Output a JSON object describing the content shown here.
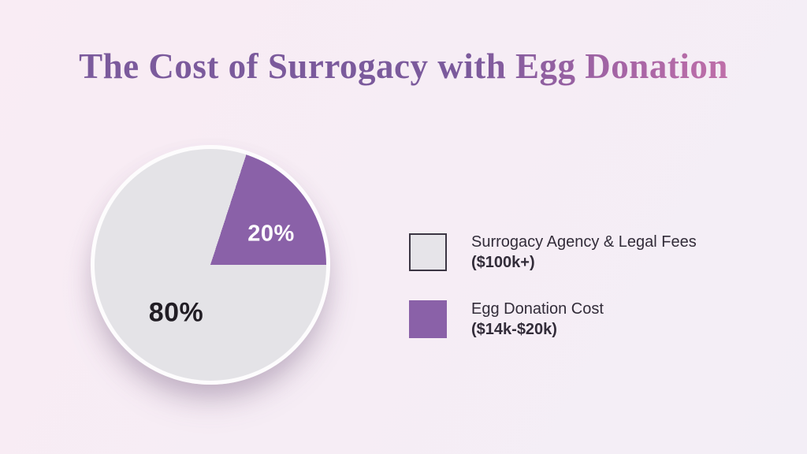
{
  "page": {
    "background_start": "#f9ecf4",
    "background_end": "#f3eef6"
  },
  "title": {
    "text": "The Cost of Surrogacy with Egg Donation",
    "color_start": "#7b5a9c",
    "color_mid": "#a765a5",
    "color_end": "#d277ac"
  },
  "chart_data": {
    "type": "pie",
    "title": "The Cost of Surrogacy with Egg Donation",
    "rotation_deg": 18,
    "legend_position": "right",
    "slices": [
      {
        "label": "Egg Donation Cost",
        "sublabel": "($14k-$20k)",
        "value": 20,
        "display": "20%",
        "color": "#8a61a8",
        "text_color": "#ffffff"
      },
      {
        "label": "Surrogacy Agency & Legal Fees",
        "sublabel": "($100k+)",
        "value": 80,
        "display": "80%",
        "color": "#e4e3e7",
        "text_color": "#211d24"
      }
    ]
  },
  "legend": {
    "items": [
      {
        "label": "Surrogacy Agency & Legal Fees",
        "amount": "($100k+)",
        "swatch_color": "#e6e4e9",
        "swatch_border": "#3b3543"
      },
      {
        "label": "Egg Donation Cost",
        "amount": "($14k-$20k)",
        "swatch_color": "#8a61a8",
        "swatch_border": "#8a61a8"
      }
    ]
  }
}
